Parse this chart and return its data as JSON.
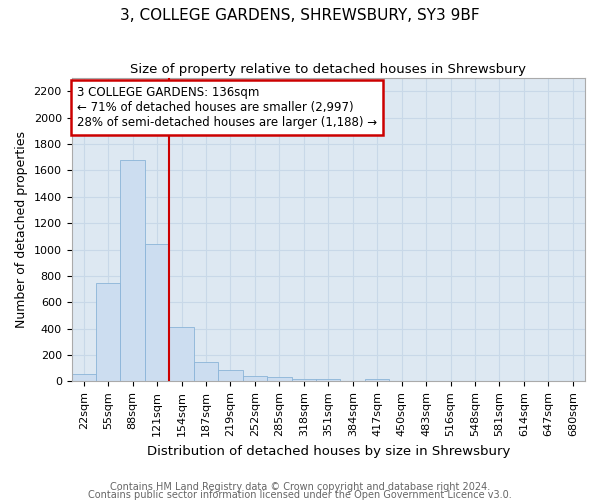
{
  "title": "3, COLLEGE GARDENS, SHREWSBURY, SY3 9BF",
  "subtitle": "Size of property relative to detached houses in Shrewsbury",
  "xlabel": "Distribution of detached houses by size in Shrewsbury",
  "ylabel": "Number of detached properties",
  "bin_labels": [
    "22sqm",
    "55sqm",
    "88sqm",
    "121sqm",
    "154sqm",
    "187sqm",
    "219sqm",
    "252sqm",
    "285sqm",
    "318sqm",
    "351sqm",
    "384sqm",
    "417sqm",
    "450sqm",
    "483sqm",
    "516sqm",
    "548sqm",
    "581sqm",
    "614sqm",
    "647sqm",
    "680sqm"
  ],
  "bar_values": [
    55,
    750,
    1680,
    1040,
    415,
    150,
    85,
    45,
    35,
    20,
    20,
    0,
    20,
    0,
    0,
    0,
    0,
    0,
    0,
    0,
    0
  ],
  "bar_color": "#ccddf0",
  "bar_edge_color": "#8ab4d8",
  "grid_color": "#c8d8e8",
  "background_color": "#dde8f2",
  "red_line_x": 3.5,
  "annotation_text": "3 COLLEGE GARDENS: 136sqm\n← 71% of detached houses are smaller (2,997)\n28% of semi-detached houses are larger (1,188) →",
  "annotation_box_facecolor": "#ffffff",
  "annotation_box_edgecolor": "#cc0000",
  "ylim": [
    0,
    2300
  ],
  "yticks": [
    0,
    200,
    400,
    600,
    800,
    1000,
    1200,
    1400,
    1600,
    1800,
    2000,
    2200
  ],
  "title_fontsize": 11,
  "subtitle_fontsize": 9.5,
  "xlabel_fontsize": 9.5,
  "ylabel_fontsize": 9,
  "tick_fontsize": 8,
  "annot_fontsize": 8.5,
  "footer_fontsize": 7,
  "footer_color": "#666666",
  "footer_line1": "Contains HM Land Registry data © Crown copyright and database right 2024.",
  "footer_line2": "Contains public sector information licensed under the Open Government Licence v3.0."
}
